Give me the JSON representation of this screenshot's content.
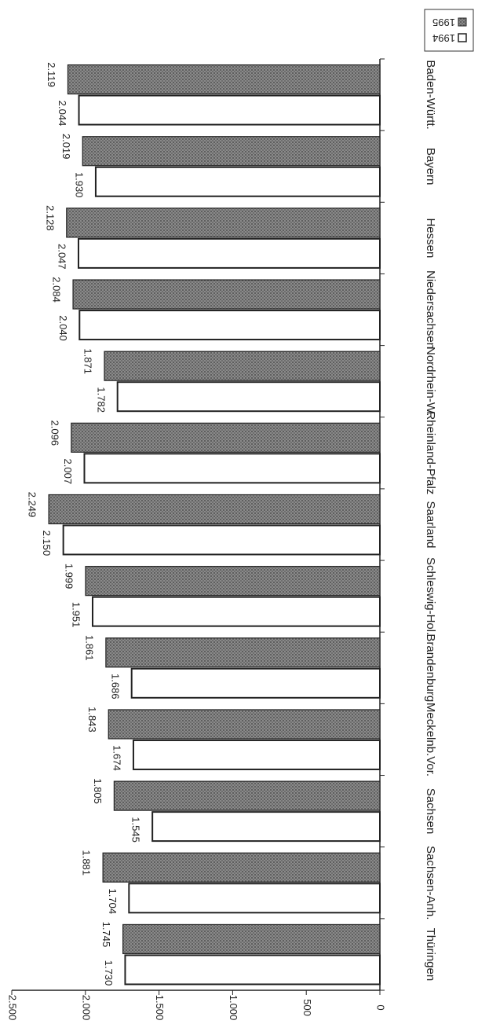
{
  "chart_data": {
    "type": "bar",
    "categories": [
      "Baden-Württ.",
      "Bayern",
      "Hessen",
      "Niedersachsen",
      "Nordrhein-W.",
      "Rheinland-Pfalz",
      "Saarland",
      "Schleswig-Hol.",
      "Brandenburg",
      "Meckelnb.Vor.",
      "Sachsen",
      "Sachsen-Anh.",
      "Thüringen"
    ],
    "series": [
      {
        "name": "1994",
        "values": [
          2044,
          1930,
          2047,
          2040,
          1782,
          2007,
          2150,
          1951,
          1686,
          1674,
          1545,
          1704,
          1730
        ],
        "labels": [
          "2.044",
          "1.930",
          "2.047",
          "2.040",
          "1.782",
          "2.007",
          "2.150",
          "1.951",
          "1.686",
          "1.674",
          "1.545",
          "1.704",
          "1.730"
        ],
        "color": "#ffffff"
      },
      {
        "name": "1995",
        "values": [
          2119,
          2019,
          2128,
          2084,
          1871,
          2096,
          2249,
          1999,
          1861,
          1843,
          1805,
          1881,
          1745
        ],
        "labels": [
          "2.119",
          "2.019",
          "2.128",
          "2.084",
          "1.871",
          "2.096",
          "2.249",
          "1.999",
          "1.861",
          "1.843",
          "1.805",
          "1.881",
          "1.745"
        ],
        "color": "#8a8a8a"
      }
    ],
    "ylim": [
      0,
      2500
    ],
    "yticks": [
      0,
      500,
      1000,
      1500,
      2000,
      2500
    ],
    "ytick_labels": [
      "0",
      "500",
      "1.000",
      "1.500",
      "2.000",
      "2.500"
    ],
    "legend_position": "top-right",
    "orientation": "rotated-180",
    "grid": false,
    "title": "",
    "xlabel": "",
    "ylabel": ""
  }
}
